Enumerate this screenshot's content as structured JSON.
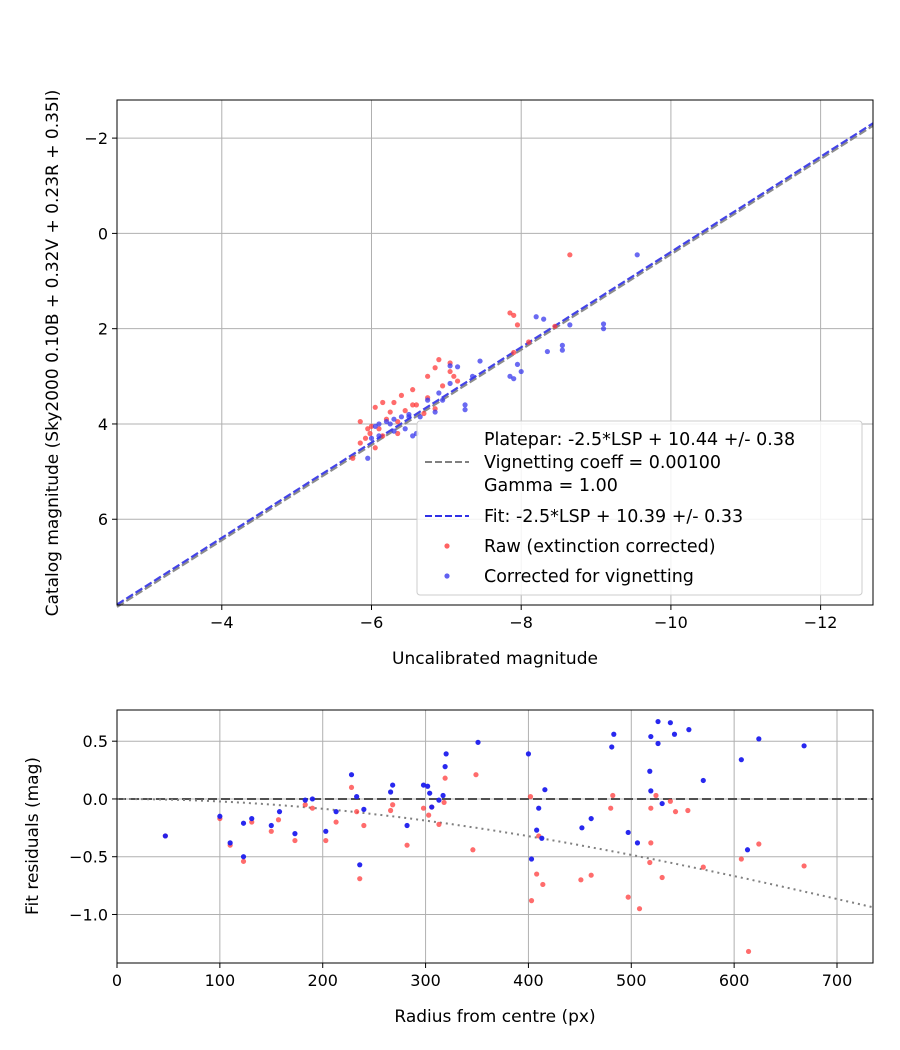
{
  "chart_data": [
    {
      "type": "scatter",
      "xlabel": "Uncalibrated magnitude",
      "ylabel": "Catalog magnitude (Sky2000 0.10B + 0.32V + 0.23R + 0.35I)",
      "xlim": [
        -2.6,
        -12.7
      ],
      "ylim": [
        7.8,
        -2.8
      ],
      "x_inverted": true,
      "y_inverted": true,
      "xticks": [
        -4,
        -6,
        -8,
        -10,
        -12
      ],
      "xtick_labels": [
        "−4",
        "−6",
        "−8",
        "−10",
        "−12"
      ],
      "yticks": [
        -2,
        0,
        2,
        4,
        6
      ],
      "ytick_labels": [
        "−2",
        "0",
        "2",
        "4",
        "6"
      ],
      "grid": true,
      "legend_position": "bottom-right",
      "legend": [
        "Platepar: -2.5*LSP + 10.44 +/- 0.38",
        "Vignetting coeff = 0.00100",
        "Gamma = 1.00",
        "Fit: -2.5*LSP + 10.39 +/- 0.33",
        "Raw (extinction corrected)",
        "Corrected for vignetting"
      ],
      "lines": [
        {
          "style": "dashed",
          "color": "#808080",
          "slope": 1.0,
          "intercept": 10.44
        },
        {
          "style": "dashed",
          "color": "#3030e6",
          "slope": 1.0,
          "intercept": 10.39
        }
      ],
      "series": [
        {
          "name": "Raw (extinction corrected)",
          "color": "#ff3b3b",
          "points": [
            [
              -8.65,
              0.45
            ],
            [
              -7.85,
              1.67
            ],
            [
              -7.9,
              1.72
            ],
            [
              -7.95,
              1.92
            ],
            [
              -8.45,
              1.95
            ],
            [
              -8.1,
              2.28
            ],
            [
              -7.9,
              2.5
            ],
            [
              -6.9,
              2.65
            ],
            [
              -7.05,
              2.72
            ],
            [
              -6.85,
              2.82
            ],
            [
              -7.05,
              2.9
            ],
            [
              -7.1,
              3.0
            ],
            [
              -7.15,
              3.1
            ],
            [
              -6.75,
              3.0
            ],
            [
              -6.95,
              3.2
            ],
            [
              -6.55,
              3.28
            ],
            [
              -6.4,
              3.4
            ],
            [
              -6.75,
              3.45
            ],
            [
              -6.3,
              3.55
            ],
            [
              -6.15,
              3.55
            ],
            [
              -6.05,
              3.65
            ],
            [
              -6.6,
              3.6
            ],
            [
              -6.85,
              3.68
            ],
            [
              -6.45,
              3.72
            ],
            [
              -6.25,
              3.75
            ],
            [
              -6.7,
              3.78
            ],
            [
              -5.85,
              3.95
            ],
            [
              -6.2,
              3.9
            ],
            [
              -6.35,
              3.95
            ],
            [
              -6.0,
              4.05
            ],
            [
              -5.95,
              4.1
            ],
            [
              -6.1,
              4.1
            ],
            [
              -5.98,
              4.2
            ],
            [
              -6.15,
              4.25
            ],
            [
              -6.35,
              4.2
            ],
            [
              -5.92,
              4.3
            ],
            [
              -5.85,
              4.4
            ],
            [
              -6.05,
              4.5
            ],
            [
              -5.75,
              4.72
            ],
            [
              -6.55,
              3.6
            ]
          ]
        },
        {
          "name": "Corrected for vignetting",
          "color": "#3838ee",
          "points": [
            [
              -9.55,
              0.45
            ],
            [
              -8.2,
              1.75
            ],
            [
              -8.3,
              1.8
            ],
            [
              -8.65,
              1.92
            ],
            [
              -9.1,
              1.9
            ],
            [
              -9.1,
              2.0
            ],
            [
              -8.55,
              2.35
            ],
            [
              -8.55,
              2.45
            ],
            [
              -8.35,
              2.48
            ],
            [
              -7.95,
              2.75
            ],
            [
              -7.45,
              2.68
            ],
            [
              -7.15,
              2.8
            ],
            [
              -7.05,
              2.78
            ],
            [
              -7.35,
              3.0
            ],
            [
              -7.85,
              3.0
            ],
            [
              -7.9,
              3.05
            ],
            [
              -8.0,
              2.9
            ],
            [
              -7.05,
              3.15
            ],
            [
              -6.9,
              3.35
            ],
            [
              -6.75,
              3.5
            ],
            [
              -6.95,
              3.5
            ],
            [
              -7.25,
              3.6
            ],
            [
              -7.25,
              3.7
            ],
            [
              -6.85,
              3.75
            ],
            [
              -6.5,
              3.8
            ],
            [
              -6.65,
              3.85
            ],
            [
              -6.5,
              3.85
            ],
            [
              -6.4,
              3.85
            ],
            [
              -6.3,
              3.9
            ],
            [
              -6.2,
              3.95
            ],
            [
              -6.1,
              4.0
            ],
            [
              -6.25,
              4.0
            ],
            [
              -6.05,
              4.05
            ],
            [
              -6.45,
              4.1
            ],
            [
              -6.3,
              4.15
            ],
            [
              -6.6,
              4.2
            ],
            [
              -6.55,
              4.25
            ],
            [
              -6.1,
              4.25
            ],
            [
              -6.0,
              4.3
            ],
            [
              -5.95,
              4.72
            ]
          ]
        }
      ]
    },
    {
      "type": "scatter",
      "xlabel": "Radius from centre (px)",
      "ylabel": "Fit residuals (mag)",
      "xlim": [
        0,
        735
      ],
      "ylim": [
        -1.42,
        0.77
      ],
      "xticks": [
        0,
        100,
        200,
        300,
        400,
        500,
        600,
        700
      ],
      "xtick_labels": [
        "0",
        "100",
        "200",
        "300",
        "400",
        "500",
        "600",
        "700"
      ],
      "yticks": [
        0.5,
        0.0,
        -0.5,
        -1.0
      ],
      "ytick_labels": [
        "0.5",
        "0.0",
        "−0.5",
        "−1.0"
      ],
      "grid": true,
      "lines": [
        {
          "style": "dashed",
          "color": "#505050",
          "y": 0.0
        },
        {
          "style": "dotted",
          "color": "#808080",
          "curve": "vignetting",
          "coeff": 0.001
        }
      ],
      "series": [
        {
          "name": "Raw (extinction corrected)",
          "color": "#ff3b3b",
          "points": [
            [
              47,
              -0.32
            ],
            [
              100,
              -0.17
            ],
            [
              110,
              -0.4
            ],
            [
              123,
              -0.54
            ],
            [
              131,
              -0.2
            ],
            [
              150,
              -0.28
            ],
            [
              157,
              -0.18
            ],
            [
              173,
              -0.36
            ],
            [
              183,
              -0.05
            ],
            [
              190,
              -0.08
            ],
            [
              203,
              -0.36
            ],
            [
              213,
              -0.2
            ],
            [
              228,
              0.1
            ],
            [
              233,
              -0.11
            ],
            [
              236,
              -0.69
            ],
            [
              240,
              -0.23
            ],
            [
              266,
              -0.1
            ],
            [
              268,
              -0.05
            ],
            [
              282,
              -0.4
            ],
            [
              298,
              -0.08
            ],
            [
              303,
              -0.14
            ],
            [
              306,
              -0.07
            ],
            [
              313,
              -0.22
            ],
            [
              319,
              0.18
            ],
            [
              318,
              -0.03
            ],
            [
              349,
              0.21
            ],
            [
              346,
              -0.44
            ],
            [
              402,
              0.02
            ],
            [
              403,
              -0.88
            ],
            [
              408,
              -0.65
            ],
            [
              414,
              -0.74
            ],
            [
              410,
              -0.32
            ],
            [
              451,
              -0.7
            ],
            [
              461,
              -0.66
            ],
            [
              480,
              -0.08
            ],
            [
              482,
              0.03
            ],
            [
              497,
              -0.85
            ],
            [
              508,
              -0.95
            ],
            [
              518,
              -0.55
            ],
            [
              519,
              -0.08
            ],
            [
              519,
              -0.38
            ],
            [
              524,
              0.03
            ],
            [
              530,
              -0.68
            ],
            [
              538,
              -0.02
            ],
            [
              543,
              -0.11
            ],
            [
              555,
              -0.1
            ],
            [
              570,
              -0.59
            ],
            [
              607,
              -0.52
            ],
            [
              614,
              -1.32
            ],
            [
              624,
              -0.39
            ],
            [
              668,
              -0.58
            ]
          ]
        },
        {
          "name": "Corrected for vignetting",
          "color": "#1c1cee",
          "points": [
            [
              47,
              -0.32
            ],
            [
              100,
              -0.15
            ],
            [
              110,
              -0.38
            ],
            [
              123,
              -0.5
            ],
            [
              123,
              -0.21
            ],
            [
              131,
              -0.17
            ],
            [
              150,
              -0.23
            ],
            [
              158,
              -0.11
            ],
            [
              173,
              -0.3
            ],
            [
              183,
              -0.01
            ],
            [
              190,
              0.0
            ],
            [
              203,
              -0.28
            ],
            [
              213,
              -0.11
            ],
            [
              228,
              0.21
            ],
            [
              233,
              0.02
            ],
            [
              236,
              -0.57
            ],
            [
              240,
              -0.09
            ],
            [
              266,
              0.06
            ],
            [
              268,
              0.12
            ],
            [
              282,
              -0.23
            ],
            [
              298,
              0.12
            ],
            [
              302,
              0.11
            ],
            [
              304,
              0.05
            ],
            [
              306,
              -0.07
            ],
            [
              313,
              -0.01
            ],
            [
              317,
              0.03
            ],
            [
              319,
              0.28
            ],
            [
              320,
              0.39
            ],
            [
              351,
              0.49
            ],
            [
              400,
              0.39
            ],
            [
              403,
              -0.52
            ],
            [
              408,
              -0.27
            ],
            [
              410,
              -0.08
            ],
            [
              413,
              -0.34
            ],
            [
              416,
              0.08
            ],
            [
              452,
              -0.25
            ],
            [
              461,
              -0.17
            ],
            [
              481,
              0.45
            ],
            [
              483,
              0.56
            ],
            [
              497,
              -0.29
            ],
            [
              506,
              -0.38
            ],
            [
              518,
              0.24
            ],
            [
              519,
              0.07
            ],
            [
              519,
              0.54
            ],
            [
              526,
              0.67
            ],
            [
              526,
              0.48
            ],
            [
              530,
              -0.04
            ],
            [
              538,
              0.66
            ],
            [
              542,
              0.56
            ],
            [
              556,
              0.6
            ],
            [
              570,
              0.16
            ],
            [
              607,
              0.34
            ],
            [
              613,
              -0.44
            ],
            [
              624,
              0.52
            ],
            [
              668,
              0.46
            ]
          ]
        }
      ]
    }
  ]
}
